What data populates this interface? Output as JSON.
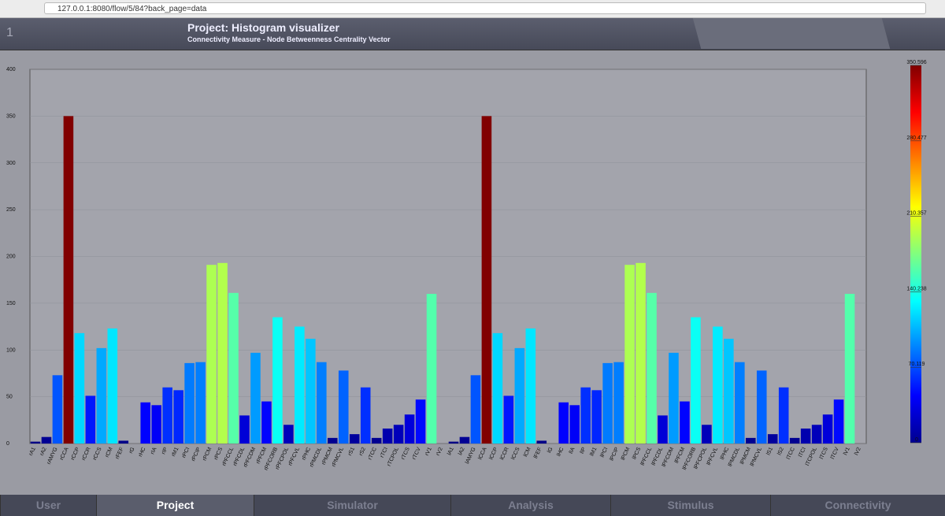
{
  "browser": {
    "url": "127.0.0.1:8080/flow/5/84?back_page=data"
  },
  "header": {
    "project_count": "1",
    "title": "Project: Histogram visualizer",
    "subtitle": "Connectivity Measure - Node Betweenness Centrality Vector"
  },
  "chart_data": {
    "type": "bar",
    "categories": [
      "rA1",
      "rA2",
      "rAMYG",
      "rCCA",
      "rCCP",
      "rCCR",
      "rCCS",
      "rCM",
      "rFEF",
      "rG",
      "rHC",
      "rIA",
      "rIP",
      "rM1",
      "rPCI",
      "rPCIP",
      "rPCM",
      "rPCS",
      "rPFCCL",
      "rPFCDL",
      "rPFCDM",
      "rPFCM",
      "rPFCORB",
      "rPFCPOL",
      "rPFCVL",
      "rPHC",
      "rPMCDL",
      "rPMCM",
      "rPMCVL",
      "rS1",
      "rS2",
      "rTCC",
      "rTCI",
      "rTCPOL",
      "rTCS",
      "rTCV",
      "rV1",
      "rV2",
      "lA1",
      "lA2",
      "lAMYG",
      "lCCA",
      "lCCP",
      "lCCR",
      "lCCS",
      "lCM",
      "lFEF",
      "lG",
      "lHC",
      "lIA",
      "lIP",
      "lM1",
      "lPCI",
      "lPCIP",
      "lPCM",
      "lPCS",
      "lPFCCL",
      "lPFCDL",
      "lPFCDM",
      "lPFCM",
      "lPFCORB",
      "lPFCPOL",
      "lPFCVL",
      "lPHC",
      "lPMCDL",
      "lPMCM",
      "lPMCVL",
      "lS1",
      "lS2",
      "lTCC",
      "lTCI",
      "lTCPOL",
      "lTCS",
      "lTCV",
      "lV1",
      "lV2"
    ],
    "values": [
      2,
      7,
      73,
      350,
      118,
      51,
      102,
      123,
      3,
      0,
      44,
      41,
      60,
      57,
      86,
      87,
      191,
      193,
      161,
      30,
      97,
      45,
      135,
      20,
      125,
      112,
      87,
      6,
      78,
      10,
      60,
      6,
      16,
      20,
      31,
      47,
      160,
      0,
      2,
      7,
      73,
      350,
      118,
      51,
      102,
      123,
      3,
      0,
      44,
      41,
      60,
      57,
      86,
      87,
      191,
      193,
      161,
      30,
      97,
      45,
      135,
      20,
      125,
      112,
      87,
      6,
      78,
      10,
      60,
      6,
      16,
      20,
      31,
      47,
      160,
      0
    ],
    "ylim": [
      0,
      400
    ],
    "yticks": [
      0,
      50,
      100,
      150,
      200,
      250,
      300,
      350,
      400
    ],
    "grid": true,
    "colormap": "jet",
    "clim": [
      0,
      350.596
    ],
    "cticks": [
      0,
      70.119,
      140.238,
      210.357,
      280.477,
      350.596
    ]
  },
  "nav": [
    "User",
    "Project",
    "Simulator",
    "Analysis",
    "Stimulus",
    "Connectivity"
  ],
  "nav_active": "Project"
}
